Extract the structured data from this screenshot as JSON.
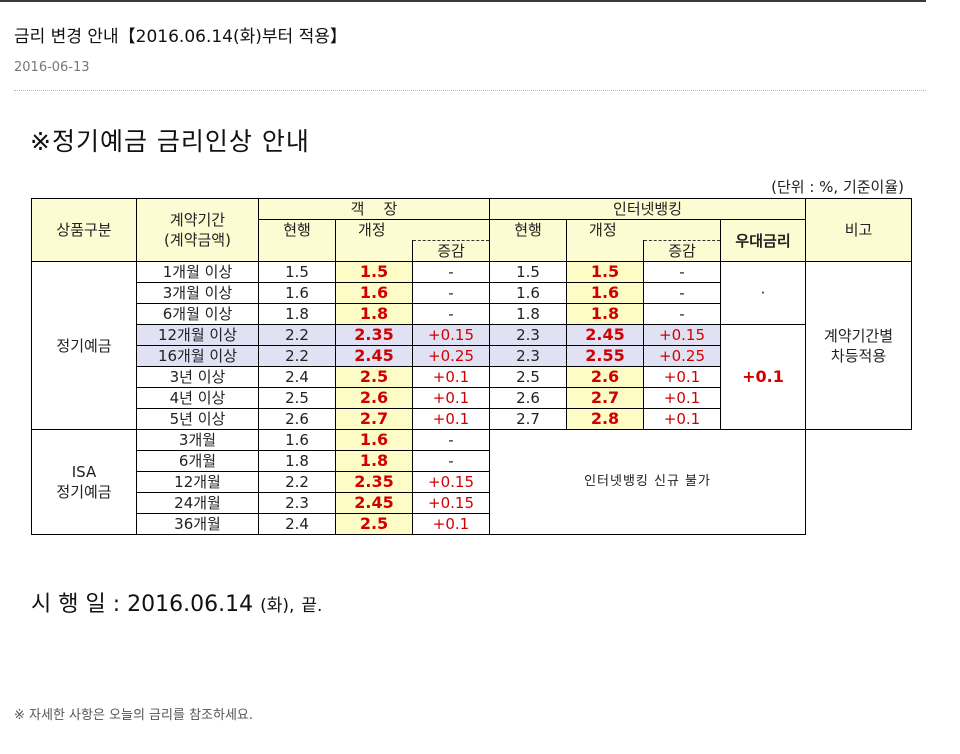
{
  "post": {
    "title": "금리 변경 안내【2016.06.14(화)부터 적용】",
    "date": "2016-06-13"
  },
  "notice": {
    "title": "※정기예금 금리인상 안내",
    "unit_note": "(단위 : %, 기준이율)"
  },
  "table": {
    "headers": {
      "product": "상품구분",
      "period_line1": "계약기간",
      "period_line2": "(계약금액)",
      "branch": "객    장",
      "internet": "인터넷뱅킹",
      "current": "현행",
      "revised": "개정",
      "change": "증감",
      "preferential": "우대금리",
      "remark": "비고"
    },
    "groups": [
      {
        "label": "정기예금",
        "rows": [
          {
            "period": "1개월 이상",
            "cur": "1.5",
            "new": "1.5",
            "chg": "-",
            "i_cur": "1.5",
            "i_new": "1.5",
            "i_chg": "-"
          },
          {
            "period": "3개월 이상",
            "cur": "1.6",
            "new": "1.6",
            "chg": "-",
            "i_cur": "1.6",
            "i_new": "1.6",
            "i_chg": "-"
          },
          {
            "period": "6개월 이상",
            "cur": "1.8",
            "new": "1.8",
            "chg": "-",
            "i_cur": "1.8",
            "i_new": "1.8",
            "i_chg": "-"
          },
          {
            "period": "12개월 이상",
            "cur": "2.2",
            "new": "2.35",
            "chg": "+0.15",
            "i_cur": "2.3",
            "i_new": "2.45",
            "i_chg": "+0.15"
          },
          {
            "period": "16개월 이상",
            "cur": "2.2",
            "new": "2.45",
            "chg": "+0.25",
            "i_cur": "2.3",
            "i_new": "2.55",
            "i_chg": "+0.25"
          },
          {
            "period": "3년 이상",
            "cur": "2.4",
            "new": "2.5",
            "chg": "+0.1",
            "i_cur": "2.5",
            "i_new": "2.6",
            "i_chg": "+0.1"
          },
          {
            "period": "4년 이상",
            "cur": "2.5",
            "new": "2.6",
            "chg": "+0.1",
            "i_cur": "2.6",
            "i_new": "2.7",
            "i_chg": "+0.1"
          },
          {
            "period": "5년 이상",
            "cur": "2.6",
            "new": "2.7",
            "chg": "+0.1",
            "i_cur": "2.7",
            "i_new": "2.8",
            "i_chg": "+0.1"
          }
        ]
      },
      {
        "label_line1": "ISA",
        "label_line2": "정기예금",
        "rows": [
          {
            "period": "3개월",
            "cur": "1.6",
            "new": "1.6",
            "chg": "-"
          },
          {
            "period": "6개월",
            "cur": "1.8",
            "new": "1.8",
            "chg": "-"
          },
          {
            "period": "12개월",
            "cur": "2.2",
            "new": "2.35",
            "chg": "+0.15"
          },
          {
            "period": "24개월",
            "cur": "2.3",
            "new": "2.45",
            "chg": "+0.15"
          },
          {
            "period": "36개월",
            "cur": "2.4",
            "new": "2.5",
            "chg": "+0.1"
          }
        ],
        "internet_note": "인터넷뱅킹 신규 불가"
      }
    ],
    "preferential_short": "·",
    "preferential_long": "+0.1",
    "remark_line1": "계약기간별",
    "remark_line2": "차등적용"
  },
  "effective": {
    "label": "시 행 일 : 2016.06.14",
    "weekday": "(화),",
    "end": "끝."
  },
  "footnote": "※ 자세한 사항은 오늘의 금리를 참조하세요."
}
